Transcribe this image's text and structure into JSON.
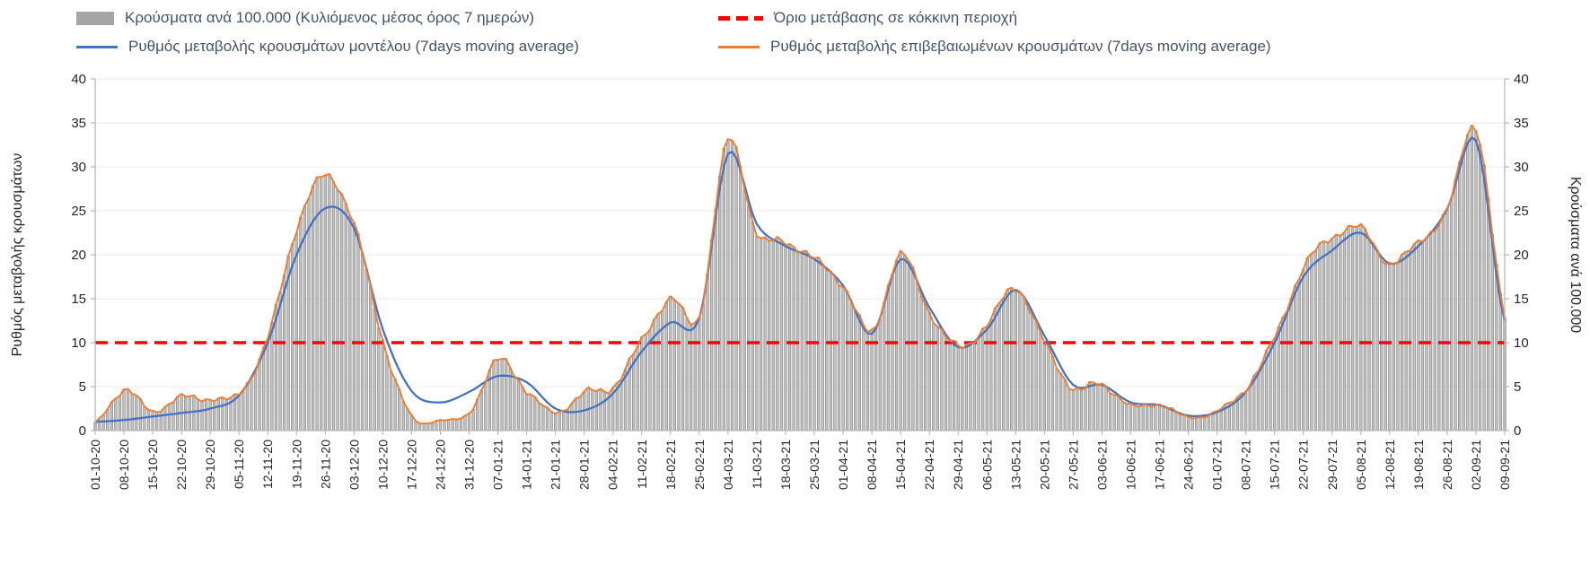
{
  "legend": {
    "bars_label": "Κρούσματα ανά 100.000 (Κυλιόμενος μέσος όρος 7 ημερών)",
    "threshold_label": "Όριο μετάβασης σε κόκκινη περιοχή",
    "model_label": "Ρυθμός μεταβολής κρουσμάτων μοντέλου (7days moving average)",
    "confirmed_label": "Ρυθμός μεταβολής επιβεβαιωμένων κρουσμάτων (7days moving average)"
  },
  "axes": {
    "left_label": "Ρυθμός μεταβολής κρουσμάτων",
    "right_label": "Κρούσματα ανά 100.000",
    "y_min": 0,
    "y_max": 40,
    "y_step": 5
  },
  "colors": {
    "bar_fill": "#c2c2c2",
    "bar_stroke": "#8a8a8a",
    "bar_legend": "#a6a6a6",
    "model_line": "#4472c4",
    "confirmed_line": "#ed7d31",
    "threshold": "#ff0000",
    "grid": "#e9e9e9",
    "axis": "#b5b5b5",
    "tick_text": "#262626",
    "legend_text": "#44546a"
  },
  "chart_data": {
    "type": "combo",
    "title": "",
    "legend_position": "top",
    "grid": true,
    "ylim": [
      0,
      40
    ],
    "y_step": 5,
    "categories": [
      "01-10-20",
      "08-10-20",
      "15-10-20",
      "22-10-20",
      "29-10-20",
      "05-11-20",
      "12-11-20",
      "19-11-20",
      "26-11-20",
      "03-12-20",
      "10-12-20",
      "17-12-20",
      "24-12-20",
      "31-12-20",
      "07-01-21",
      "14-01-21",
      "21-01-21",
      "28-01-21",
      "04-02-21",
      "11-02-21",
      "18-02-21",
      "25-02-21",
      "04-03-21",
      "11-03-21",
      "18-03-21",
      "25-03-21",
      "01-04-21",
      "08-04-21",
      "15-04-21",
      "22-04-21",
      "29-04-21",
      "06-05-21",
      "13-05-21",
      "20-05-21",
      "27-05-21",
      "03-06-21",
      "10-06-21",
      "17-06-21",
      "24-06-21",
      "01-07-21",
      "08-07-21",
      "15-07-21",
      "22-07-21",
      "29-07-21",
      "05-08-21",
      "12-08-21",
      "19-08-21",
      "26-08-21",
      "02-09-21",
      "09-09-21"
    ],
    "x_note": "weekly tick labels; gray bars are daily values between the weekly anchors",
    "series": [
      {
        "name": "Κρούσματα ανά 100.000 (Κυλιόμενος μέσος όρος 7 ημερών)",
        "type": "bar",
        "axis": "right",
        "color": "#a6a6a6",
        "values": [
          0.9,
          4.6,
          2.2,
          3.8,
          3.6,
          4.2,
          10.5,
          23.0,
          29.0,
          23.5,
          10.3,
          1.6,
          1.2,
          2.0,
          8.0,
          4.6,
          2.0,
          4.3,
          5.0,
          10.2,
          15.0,
          13.0,
          33.0,
          22.5,
          21.5,
          19.5,
          16.5,
          11.2,
          20.0,
          13.5,
          9.5,
          12.0,
          16.3,
          10.0,
          4.8,
          5.3,
          2.8,
          3.0,
          1.5,
          2.2,
          4.8,
          10.5,
          18.5,
          22.0,
          23.0,
          19.0,
          21.5,
          25.0,
          34.5,
          13.0
        ]
      },
      {
        "name": "Ρυθμός μεταβολής κρουσμάτων μοντέλου (7days moving average)",
        "type": "line",
        "axis": "left",
        "color": "#4472c4",
        "values": [
          1.0,
          1.2,
          1.6,
          2.0,
          2.5,
          4.0,
          10.0,
          20.0,
          25.3,
          23.0,
          11.5,
          4.5,
          3.2,
          4.4,
          6.2,
          5.5,
          2.5,
          2.3,
          4.2,
          9.0,
          12.3,
          12.8,
          31.5,
          23.5,
          21.0,
          19.5,
          16.5,
          11.0,
          19.5,
          14.0,
          9.5,
          11.5,
          16.0,
          10.8,
          5.2,
          5.2,
          3.2,
          2.9,
          1.7,
          2.1,
          4.4,
          10.0,
          17.5,
          20.5,
          22.5,
          19.0,
          21.0,
          25.2,
          33.0,
          12.5
        ]
      },
      {
        "name": "Ρυθμός μεταβολής επιβεβαιωμένων κρουσμάτων (7days moving average)",
        "type": "line",
        "axis": "left",
        "color": "#ed7d31",
        "values": [
          0.9,
          4.6,
          2.2,
          3.8,
          3.6,
          4.2,
          10.5,
          23.0,
          29.0,
          23.5,
          10.3,
          1.6,
          1.2,
          2.0,
          8.0,
          4.6,
          2.0,
          4.3,
          5.0,
          10.2,
          15.0,
          13.0,
          33.0,
          22.5,
          21.5,
          19.5,
          16.5,
          11.2,
          20.0,
          13.5,
          9.5,
          12.0,
          16.3,
          10.0,
          4.8,
          5.3,
          2.8,
          3.0,
          1.5,
          2.2,
          4.8,
          10.5,
          18.5,
          22.0,
          23.0,
          19.0,
          21.5,
          25.0,
          34.5,
          13.0
        ]
      },
      {
        "name": "Όριο μετάβασης σε κόκκινη περιοχή",
        "type": "threshold-line",
        "axis": "left",
        "color": "#ff0000",
        "value": 10
      }
    ]
  }
}
